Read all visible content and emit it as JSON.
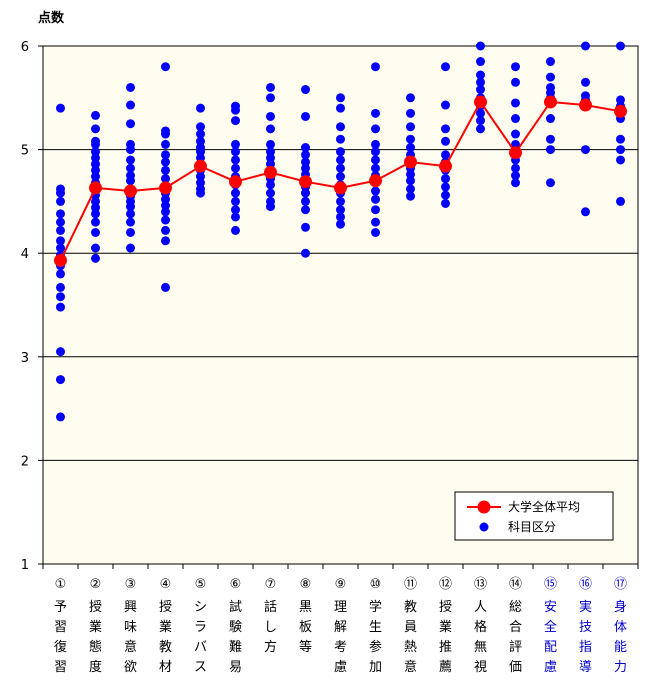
{
  "chart_data": {
    "type": "scatter",
    "ylabel": "点数",
    "ylim": [
      1,
      6
    ],
    "yticks": [
      1,
      2,
      3,
      4,
      5,
      6
    ],
    "grid": true,
    "legend_position": "bottom-right",
    "categories": [
      {
        "num": "①",
        "name": "予習復習",
        "highlight": false
      },
      {
        "num": "②",
        "name": "授業態度",
        "highlight": false
      },
      {
        "num": "③",
        "name": "興味意欲",
        "highlight": false
      },
      {
        "num": "④",
        "name": "授業教材",
        "highlight": false
      },
      {
        "num": "⑤",
        "name": "シラバス",
        "highlight": false
      },
      {
        "num": "⑥",
        "name": "試験難易",
        "highlight": false
      },
      {
        "num": "⑦",
        "name": "話し方",
        "highlight": false
      },
      {
        "num": "⑧",
        "name": "黒板等",
        "highlight": false
      },
      {
        "num": "⑨",
        "name": "理解考慮",
        "highlight": false
      },
      {
        "num": "⑩",
        "name": "学生参加",
        "highlight": false
      },
      {
        "num": "⑪",
        "name": "教員熱意",
        "highlight": false
      },
      {
        "num": "⑫",
        "name": "授業推薦",
        "highlight": false
      },
      {
        "num": "⑬",
        "name": "人格無視",
        "highlight": false
      },
      {
        "num": "⑭",
        "name": "総合評価",
        "highlight": false
      },
      {
        "num": "⑮",
        "name": "安全配慮",
        "highlight": true
      },
      {
        "num": "⑯",
        "name": "実技指導",
        "highlight": true
      },
      {
        "num": "⑰",
        "name": "身体能力",
        "highlight": true
      }
    ],
    "series": [
      {
        "name": "大学全体平均",
        "type": "line",
        "color": "#ff0000",
        "values": [
          3.93,
          4.63,
          4.6,
          4.63,
          4.84,
          4.69,
          4.78,
          4.69,
          4.63,
          4.7,
          4.88,
          4.84,
          5.46,
          4.97,
          5.46,
          5.43,
          5.37
        ]
      },
      {
        "name": "科目区分",
        "type": "scatter",
        "color": "#0000ff",
        "points": [
          [
            5.4,
            4.62,
            4.58,
            4.5,
            4.38,
            4.3,
            4.22,
            4.12,
            4.05,
            3.98,
            3.88,
            3.8,
            3.67,
            3.58,
            3.48,
            3.05,
            2.78,
            2.42
          ],
          [
            5.33,
            5.2,
            5.08,
            5.05,
            4.98,
            4.92,
            4.86,
            4.8,
            4.74,
            4.68,
            4.62,
            4.56,
            4.5,
            4.44,
            4.38,
            4.3,
            4.2,
            4.05,
            3.95
          ],
          [
            5.6,
            5.43,
            5.25,
            5.05,
            5.0,
            4.9,
            4.82,
            4.75,
            4.7,
            4.62,
            4.55,
            4.5,
            4.45,
            4.38,
            4.3,
            4.2,
            4.05
          ],
          [
            5.8,
            5.18,
            5.15,
            5.05,
            4.95,
            4.88,
            4.8,
            4.72,
            4.65,
            4.58,
            4.52,
            4.46,
            4.4,
            4.32,
            4.22,
            4.12,
            3.67
          ],
          [
            5.4,
            5.22,
            5.15,
            5.08,
            5.02,
            4.98,
            4.92,
            4.86,
            4.8,
            4.74,
            4.68,
            4.62,
            4.58
          ],
          [
            5.42,
            5.38,
            5.28,
            5.05,
            4.98,
            4.9,
            4.82,
            4.74,
            4.66,
            4.58,
            4.5,
            4.42,
            4.35,
            4.22
          ],
          [
            5.6,
            5.5,
            5.32,
            5.2,
            5.05,
            4.98,
            4.92,
            4.86,
            4.8,
            4.72,
            4.66,
            4.58,
            4.5,
            4.45
          ],
          [
            5.58,
            5.32,
            5.02,
            4.95,
            4.88,
            4.82,
            4.76,
            4.7,
            4.64,
            4.58,
            4.5,
            4.42,
            4.25,
            4.0
          ],
          [
            5.5,
            5.4,
            5.22,
            5.1,
            4.98,
            4.9,
            4.82,
            4.74,
            4.66,
            4.58,
            4.5,
            4.42,
            4.35,
            4.28
          ],
          [
            5.8,
            5.35,
            5.2,
            5.05,
            4.98,
            4.9,
            4.82,
            4.75,
            4.68,
            4.6,
            4.52,
            4.42,
            4.3,
            4.2
          ],
          [
            5.5,
            5.35,
            5.22,
            5.1,
            5.02,
            4.95,
            4.88,
            4.82,
            4.76,
            4.7,
            4.62,
            4.55
          ],
          [
            5.8,
            5.43,
            5.2,
            5.08,
            4.95,
            4.88,
            4.8,
            4.72,
            4.64,
            4.56,
            4.48
          ],
          [
            6.0,
            5.85,
            5.72,
            5.65,
            5.58,
            5.5,
            5.42,
            5.35,
            5.28,
            5.2
          ],
          [
            5.8,
            5.65,
            5.45,
            5.3,
            5.15,
            5.05,
            4.98,
            4.9,
            4.82,
            4.75,
            4.68
          ],
          [
            5.85,
            5.7,
            5.6,
            5.55,
            5.5,
            5.45,
            5.3,
            5.1,
            5.0,
            4.68
          ],
          [
            6.0,
            5.65,
            5.52,
            5.48,
            5.45,
            5.42,
            5.0,
            4.4
          ],
          [
            6.0,
            5.48,
            5.42,
            5.35,
            5.3,
            5.1,
            5.0,
            4.9,
            4.5
          ]
        ]
      }
    ]
  }
}
